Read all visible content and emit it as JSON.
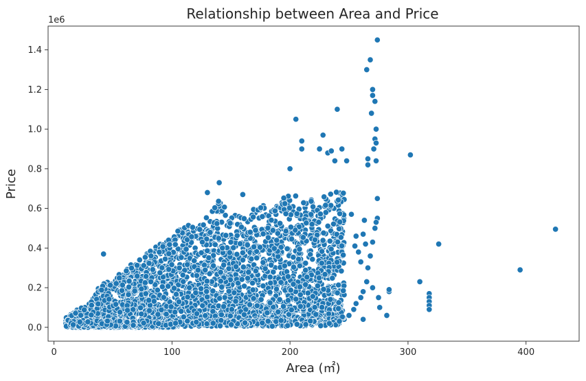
{
  "chart_data": {
    "type": "scatter",
    "title": "Relationship between Area and Price",
    "xlabel": "Area (㎡)",
    "ylabel": "Price",
    "y_offset_label": "1e6",
    "xlim": [
      -5,
      445
    ],
    "ylim": [
      -70000,
      1520000
    ],
    "x_ticks": [
      0,
      100,
      200,
      300,
      400
    ],
    "y_ticks": [
      0,
      200000,
      400000,
      600000,
      800000,
      1000000,
      1200000,
      1400000
    ],
    "y_tick_labels": [
      "0.0",
      "0.2",
      "0.4",
      "0.6",
      "0.8",
      "1.0",
      "1.2",
      "1.4"
    ],
    "grid": false,
    "marker_color": "#1f77b4",
    "marker_edge_color": "#ffffff",
    "dense_region": {
      "description_band": [
        [
          10,
          0,
          50000
        ],
        [
          20,
          0,
          90000
        ],
        [
          30,
          0,
          120000
        ],
        [
          40,
          0,
          220000
        ],
        [
          50,
          0,
          240000
        ],
        [
          60,
          0,
          300000
        ],
        [
          70,
          0,
          330000
        ],
        [
          80,
          0,
          380000
        ],
        [
          90,
          0,
          420000
        ],
        [
          100,
          0,
          450000
        ],
        [
          110,
          10000,
          540000
        ],
        [
          120,
          10000,
          500000
        ],
        [
          130,
          10000,
          560000
        ],
        [
          140,
          10000,
          650000
        ],
        [
          150,
          10000,
          560000
        ],
        [
          160,
          10000,
          580000
        ],
        [
          170,
          10000,
          600000
        ],
        [
          180,
          10000,
          620000
        ],
        [
          190,
          20000,
          620000
        ],
        [
          200,
          20000,
          700000
        ],
        [
          210,
          20000,
          640000
        ],
        [
          220,
          30000,
          650000
        ],
        [
          230,
          30000,
          660000
        ],
        [
          240,
          40000,
          700000
        ],
        [
          246,
          40000,
          680000
        ]
      ]
    },
    "points": [
      [
        42,
        370000
      ],
      [
        140,
        730000
      ],
      [
        130,
        680000
      ],
      [
        160,
        670000
      ],
      [
        200,
        800000
      ],
      [
        205,
        1050000
      ],
      [
        210,
        940000
      ],
      [
        210,
        900000
      ],
      [
        225,
        900000
      ],
      [
        228,
        970000
      ],
      [
        232,
        880000
      ],
      [
        235,
        890000
      ],
      [
        238,
        840000
      ],
      [
        240,
        1100000
      ],
      [
        244,
        900000
      ],
      [
        248,
        840000
      ],
      [
        252,
        570000
      ],
      [
        255,
        410000
      ],
      [
        256,
        460000
      ],
      [
        258,
        380000
      ],
      [
        260,
        330000
      ],
      [
        262,
        470000
      ],
      [
        263,
        540000
      ],
      [
        264,
        420000
      ],
      [
        265,
        1300000
      ],
      [
        266,
        850000
      ],
      [
        266,
        820000
      ],
      [
        268,
        1350000
      ],
      [
        269,
        1080000
      ],
      [
        270,
        1200000
      ],
      [
        270,
        1170000
      ],
      [
        271,
        900000
      ],
      [
        272,
        950000
      ],
      [
        272,
        1140000
      ],
      [
        273,
        1000000
      ],
      [
        273,
        840000
      ],
      [
        273,
        930000
      ],
      [
        274,
        1450000
      ],
      [
        274,
        650000
      ],
      [
        274,
        550000
      ],
      [
        273,
        530000
      ],
      [
        272,
        500000
      ],
      [
        270,
        430000
      ],
      [
        268,
        360000
      ],
      [
        266,
        300000
      ],
      [
        265,
        230000
      ],
      [
        262,
        180000
      ],
      [
        260,
        150000
      ],
      [
        256,
        120000
      ],
      [
        254,
        90000
      ],
      [
        250,
        60000
      ],
      [
        262,
        40000
      ],
      [
        270,
        200000
      ],
      [
        275,
        150000
      ],
      [
        276,
        100000
      ],
      [
        282,
        60000
      ],
      [
        284,
        180000
      ],
      [
        284,
        190000
      ],
      [
        302,
        870000
      ],
      [
        310,
        230000
      ],
      [
        318,
        170000
      ],
      [
        318,
        150000
      ],
      [
        318,
        130000
      ],
      [
        318,
        110000
      ],
      [
        318,
        90000
      ],
      [
        326,
        420000
      ],
      [
        395,
        290000
      ],
      [
        425,
        495000
      ]
    ]
  }
}
